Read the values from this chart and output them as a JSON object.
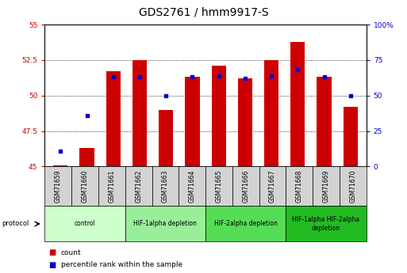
{
  "title": "GDS2761 / hmm9917-S",
  "samples": [
    "GSM71659",
    "GSM71660",
    "GSM71661",
    "GSM71662",
    "GSM71663",
    "GSM71664",
    "GSM71665",
    "GSM71666",
    "GSM71667",
    "GSM71668",
    "GSM71669",
    "GSM71670"
  ],
  "bar_values": [
    45.1,
    46.3,
    51.7,
    52.5,
    49.0,
    51.3,
    52.1,
    51.2,
    52.5,
    53.8,
    51.3,
    49.2
  ],
  "percentile_values": [
    11,
    36,
    63,
    63,
    50,
    63,
    64,
    62,
    64,
    68,
    63,
    50
  ],
  "bar_color": "#cc0000",
  "dot_color": "#0000cc",
  "ylim_left": [
    45,
    55
  ],
  "ylim_right": [
    0,
    100
  ],
  "yticks_left": [
    45,
    47.5,
    50,
    52.5,
    55
  ],
  "yticks_right": [
    0,
    25,
    50,
    75,
    100
  ],
  "ytick_labels_left": [
    "45",
    "47.5",
    "50",
    "52.5",
    "55"
  ],
  "ytick_labels_right": [
    "0",
    "25",
    "50",
    "75",
    "100%"
  ],
  "background_color": "#ffffff",
  "bar_bottom": 45,
  "protocols": [
    {
      "label": "control",
      "start": 0,
      "end": 3,
      "color": "#ccffcc"
    },
    {
      "label": "HIF-1alpha depletion",
      "start": 3,
      "end": 6,
      "color": "#99ee99"
    },
    {
      "label": "HIF-2alpha depletion",
      "start": 6,
      "end": 9,
      "color": "#55dd55"
    },
    {
      "label": "HIF-1alpha HIF-2alpha\ndepletion",
      "start": 9,
      "end": 12,
      "color": "#22bb22"
    }
  ],
  "legend_count_color": "#cc0000",
  "legend_pct_color": "#0000cc",
  "legend_count_label": "count",
  "legend_pct_label": "percentile rank within the sample",
  "title_fontsize": 10,
  "tick_fontsize": 6.5,
  "label_fontsize": 7
}
